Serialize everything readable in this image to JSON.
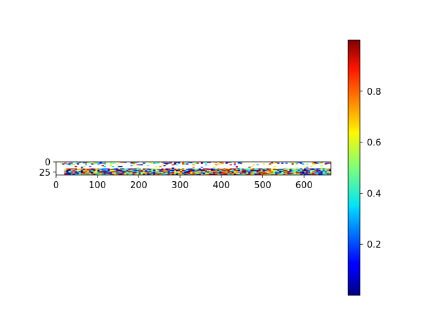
{
  "chart_data": {
    "type": "heatmap",
    "colormap": "jet",
    "x_range": [
      0,
      665
    ],
    "y_range": [
      32,
      0
    ],
    "x_ticks": [
      0,
      100,
      200,
      300,
      400,
      500,
      600
    ],
    "x_tick_labels": [
      "0",
      "100",
      "200",
      "300",
      "400",
      "500",
      "600"
    ],
    "y_ticks": [
      0,
      25
    ],
    "y_tick_labels": [
      "0",
      "25"
    ],
    "colorbar": {
      "range": [
        0.0,
        1.0
      ],
      "ticks": [
        0.2,
        0.4,
        0.6,
        0.8
      ],
      "tick_labels": [
        "0.2",
        "0.4",
        "0.6",
        "0.8"
      ]
    },
    "grid": false,
    "cell_width": 5,
    "rows": [
      {
        "y": [
          0,
          4
        ],
        "x": [
          10,
          665
        ],
        "gaps": [
          [
            455,
            520
          ]
        ],
        "density": 0.55,
        "mean": 0.55
      },
      {
        "y": [
          4,
          8
        ],
        "x": [
          10,
          665
        ],
        "gaps": [],
        "density": 0.18,
        "mean": 0.5
      },
      {
        "y": [
          8,
          16
        ],
        "x": [
          20,
          665
        ],
        "gaps": [],
        "density": 0.05,
        "mean": 0.5
      },
      {
        "y": [
          16,
          32
        ],
        "x": [
          20,
          665
        ],
        "gaps": [],
        "density": 0.97,
        "mean": 0.5
      }
    ]
  }
}
